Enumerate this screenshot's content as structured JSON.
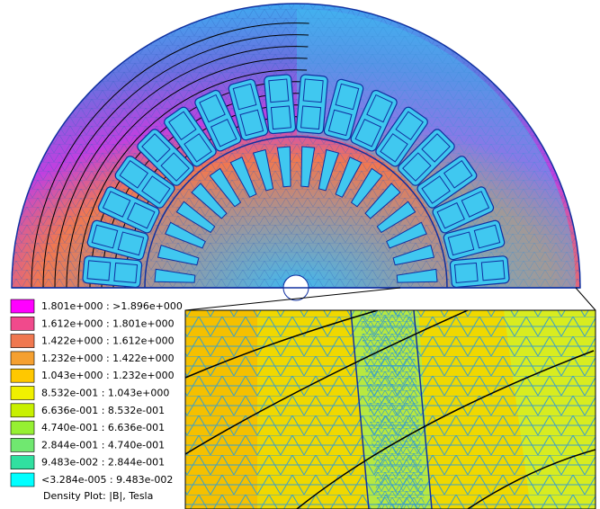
{
  "legend": {
    "entries": [
      {
        "label": "1.801e+000 : >1.896e+000",
        "color": "#ff00ff"
      },
      {
        "label": "1.612e+000 : 1.801e+000",
        "color": "#f04a8c"
      },
      {
        "label": "1.422e+000 : 1.612e+000",
        "color": "#f07850"
      },
      {
        "label": "1.232e+000 : 1.422e+000",
        "color": "#f5a030"
      },
      {
        "label": "1.043e+000 : 1.232e+000",
        "color": "#ffc800"
      },
      {
        "label": "8.532e-001 : 1.043e+000",
        "color": "#f0f000"
      },
      {
        "label": "6.636e-001 : 8.532e-001",
        "color": "#c8f000"
      },
      {
        "label": "4.740e-001 : 6.636e-001",
        "color": "#96f032"
      },
      {
        "label": "2.844e-001 : 4.740e-001",
        "color": "#70e870"
      },
      {
        "label": "9.483e-002 : 2.844e-001",
        "color": "#30e0a0"
      },
      {
        "label": "<3.284e-005 : 9.483e-002",
        "color": "#00ffff"
      }
    ],
    "caption": "Density Plot: |B|, Tesla"
  }
}
